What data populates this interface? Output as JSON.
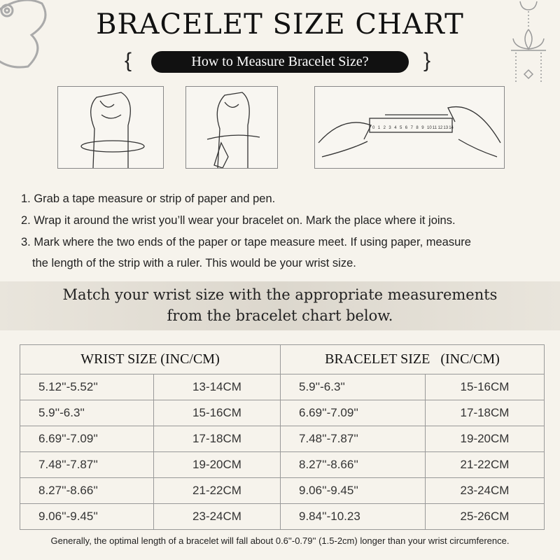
{
  "title": "BRACELET SIZE CHART",
  "subtitle": "How to Measure Bracelet Size?",
  "ruler_numbers": [
    "0",
    "1",
    "2",
    "3",
    "4",
    "5",
    "6",
    "7",
    "8",
    "9",
    "10",
    "11",
    "12",
    "13",
    "14"
  ],
  "instructions": [
    "1. Grab a tape measure or strip of paper and pen.",
    "2. Wrap it around the wrist you’ll wear your bracelet on. Mark the place where it joins.",
    "3. Mark where the two ends of the paper or tape measure meet. If using paper, measure",
    "the length of the strip with a ruler. This would be your wrist size."
  ],
  "banner": [
    "Match your wrist size with the appropriate measurements",
    "from the bracelet chart below."
  ],
  "table": {
    "headers": [
      "WRIST SIZE (INC/CM)",
      "BRACELET SIZE   (INC/CM)"
    ],
    "rows": [
      [
        "5.12''-5.52''",
        "13-14CM",
        "5.9''-6.3''",
        "15-16CM"
      ],
      [
        "5.9''-6.3''",
        "15-16CM",
        "6.69''-7.09''",
        "17-18CM"
      ],
      [
        "6.69''-7.09''",
        "17-18CM",
        "7.48''-7.87''",
        "19-20CM"
      ],
      [
        "7.48''-7.87''",
        "19-20CM",
        "8.27''-8.66''",
        "21-22CM"
      ],
      [
        "8.27''-8.66''",
        "21-22CM",
        "9.06''-9.45''",
        "23-24CM"
      ],
      [
        "9.06''-9.45''",
        "23-24CM",
        "9.84''-10.23",
        "25-26CM"
      ]
    ]
  },
  "footer": "Generally, the optimal length of a bracelet will fall about 0.6''-0.79'' (1.5-2cm) longer than your wrist circumference."
}
